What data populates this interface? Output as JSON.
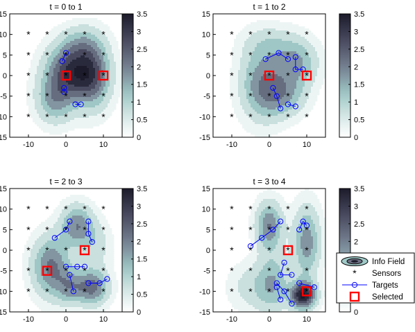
{
  "chart_data": [
    {
      "type": "contour",
      "title": "t = 0 to 1",
      "xlim": [
        -15,
        15
      ],
      "ylim": [
        -15,
        15
      ],
      "xticks": [
        -10,
        0,
        10
      ],
      "yticks": [
        -15,
        -10,
        -5,
        0,
        5,
        10,
        15
      ],
      "colorbar": {
        "min": 0,
        "max": 3.5,
        "ticks": [
          0,
          0.5,
          1,
          1.5,
          2,
          2.5,
          3,
          3.5
        ]
      },
      "selected": [
        [
          0,
          0
        ],
        [
          10,
          0
        ]
      ],
      "targets": [
        [
          [
            0,
            5.5
          ],
          [
            -1,
            3.5
          ]
        ],
        [
          [
            -0.5,
            -4
          ],
          [
            -0.5,
            -3
          ]
        ],
        [
          [
            2.5,
            -7
          ],
          [
            4,
            -7
          ]
        ]
      ],
      "field": [
        {
          "x": 1,
          "y": 1,
          "a": 2.6,
          "sx": 4.5,
          "sy": 4.5
        },
        {
          "x": 7,
          "y": 0,
          "a": 2.2,
          "sx": 3.5,
          "sy": 5.5
        },
        {
          "x": -3,
          "y": -6,
          "a": 1.5,
          "sx": 3.5,
          "sy": 4
        },
        {
          "x": 4,
          "y": 8,
          "a": 0.8,
          "sx": 4,
          "sy": 3
        }
      ]
    },
    {
      "type": "contour",
      "title": "t = 1 to 2",
      "xlim": [
        -15,
        15
      ],
      "ylim": [
        -15,
        15
      ],
      "xticks": [
        -10,
        0,
        10
      ],
      "yticks": [
        -15,
        -10,
        -5,
        0,
        5,
        10,
        15
      ],
      "colorbar": {
        "min": 0,
        "max": 3.5,
        "ticks": [
          0,
          0.5,
          1,
          1.5,
          2,
          2.5,
          3,
          3.5
        ]
      },
      "selected": [
        [
          0,
          0
        ],
        [
          10,
          0
        ]
      ],
      "targets": [
        [
          [
            -1,
            4
          ],
          [
            2.5,
            5.5
          ],
          [
            5,
            4
          ]
        ],
        [
          [
            7,
            4.5
          ],
          [
            7,
            1.5
          ],
          [
            9,
            1.5
          ]
        ],
        [
          [
            1,
            -3
          ],
          [
            2,
            -5
          ],
          [
            3,
            -8
          ]
        ],
        [
          [
            5,
            -7
          ],
          [
            7,
            -7.5
          ]
        ]
      ],
      "field": [
        {
          "x": -2,
          "y": -2,
          "a": 1.8,
          "sx": 4,
          "sy": 6
        },
        {
          "x": 7,
          "y": 3,
          "a": 1.6,
          "sx": 4,
          "sy": 4
        },
        {
          "x": 4,
          "y": -5,
          "a": 1.3,
          "sx": 4,
          "sy": 3.5
        },
        {
          "x": 0,
          "y": 8,
          "a": 0.6,
          "sx": 5,
          "sy": 3
        }
      ]
    },
    {
      "type": "contour",
      "title": "t = 2 to 3",
      "xlim": [
        -15,
        15
      ],
      "ylim": [
        -15,
        15
      ],
      "xticks": [
        -10,
        0,
        10
      ],
      "yticks": [
        -15,
        -10,
        -5,
        0,
        5,
        10,
        15
      ],
      "colorbar": {
        "min": 0,
        "max": 3.5,
        "ticks": [
          0,
          0.5,
          1,
          1.5,
          2,
          2.5,
          3,
          3.5
        ]
      },
      "selected": [
        [
          5,
          0
        ],
        [
          -5,
          -5
        ]
      ],
      "targets": [
        [
          [
            -3,
            3
          ],
          [
            0,
            5
          ],
          [
            1,
            7
          ]
        ],
        [
          [
            6,
            7
          ],
          [
            6,
            4
          ],
          [
            7,
            2
          ]
        ],
        [
          [
            0,
            -4
          ],
          [
            3,
            -4
          ],
          [
            5,
            -4
          ]
        ],
        [
          [
            6,
            -8
          ],
          [
            9,
            -8
          ],
          [
            11,
            -7
          ]
        ],
        [
          [
            2,
            -10
          ],
          [
            1,
            -6
          ]
        ]
      ],
      "field": [
        {
          "x": -4,
          "y": -4,
          "a": 2.1,
          "sx": 3.5,
          "sy": 5
        },
        {
          "x": 3,
          "y": 6,
          "a": 1.9,
          "sx": 3,
          "sy": 3.5
        },
        {
          "x": 7,
          "y": -9,
          "a": 2.2,
          "sx": 3,
          "sy": 3
        },
        {
          "x": 1,
          "y": -9,
          "a": 1.3,
          "sx": 2.5,
          "sy": 3
        },
        {
          "x": 8,
          "y": 1,
          "a": 0.7,
          "sx": 3,
          "sy": 4
        }
      ]
    },
    {
      "type": "contour",
      "title": "t = 3 to 4",
      "xlim": [
        -15,
        15
      ],
      "ylim": [
        -15,
        15
      ],
      "xticks": [
        -10,
        0,
        10
      ],
      "yticks": [
        -15,
        -10,
        -5,
        0,
        5,
        10,
        15
      ],
      "colorbar": {
        "min": 0,
        "max": 3.5,
        "ticks": [
          0,
          0.5,
          1,
          1.5,
          2,
          2.5,
          3,
          3.5
        ]
      },
      "selected": [
        [
          5,
          0
        ],
        [
          10,
          -10
        ]
      ],
      "targets": [
        [
          [
            -5,
            1
          ],
          [
            -2,
            3
          ],
          [
            1,
            5
          ],
          [
            3,
            7
          ]
        ],
        [
          [
            8,
            5
          ],
          [
            9,
            7
          ],
          [
            10,
            6
          ]
        ],
        [
          [
            4,
            -3
          ],
          [
            3,
            -6
          ],
          [
            6,
            -6
          ]
        ],
        [
          [
            2,
            -8
          ],
          [
            4,
            -10
          ],
          [
            6,
            -13
          ]
        ],
        [
          [
            8,
            -8
          ],
          [
            12,
            -9
          ]
        ],
        [
          [
            3,
            -12
          ],
          [
            2,
            -9
          ]
        ]
      ],
      "field": [
        {
          "x": 9,
          "y": -11,
          "a": 3.5,
          "sx": 2.3,
          "sy": 2.3
        },
        {
          "x": 0,
          "y": 6,
          "a": 2.0,
          "sx": 2.5,
          "sy": 4
        },
        {
          "x": 10,
          "y": 2,
          "a": 1.8,
          "sx": 2.5,
          "sy": 6
        },
        {
          "x": 1,
          "y": -8,
          "a": 1.4,
          "sx": 3,
          "sy": 5
        },
        {
          "x": -5,
          "y": -9,
          "a": 0.7,
          "sx": 4,
          "sy": 4
        }
      ]
    }
  ],
  "sensors": [
    [
      -10,
      10
    ],
    [
      -5,
      10
    ],
    [
      0,
      10
    ],
    [
      5,
      10
    ],
    [
      10,
      10
    ],
    [
      -10,
      5
    ],
    [
      -5,
      5
    ],
    [
      0,
      5
    ],
    [
      5,
      5
    ],
    [
      10,
      5
    ],
    [
      -10,
      0
    ],
    [
      -5,
      0
    ],
    [
      0,
      0
    ],
    [
      5,
      0
    ],
    [
      10,
      0
    ],
    [
      -10,
      -5
    ],
    [
      -5,
      -5
    ],
    [
      0,
      -5
    ],
    [
      5,
      -5
    ],
    [
      10,
      -5
    ],
    [
      -10,
      -10
    ],
    [
      -5,
      -10
    ],
    [
      0,
      -10
    ],
    [
      5,
      -10
    ],
    [
      10,
      -10
    ]
  ],
  "legend": {
    "entries": [
      {
        "key": "field",
        "label": "Info Field"
      },
      {
        "key": "sensors",
        "label": "Sensors"
      },
      {
        "key": "targets",
        "label": "Targets"
      },
      {
        "key": "selected",
        "label": "Selected"
      }
    ],
    "placement": "bottom-right"
  },
  "colors": {
    "target": "#0000ff",
    "selected": "#ff0000",
    "sensor": "#000000",
    "cmap_low": "#ffffff",
    "cmap_mid": "#9fc9c7",
    "cmap_high": "#1b1b2b"
  }
}
